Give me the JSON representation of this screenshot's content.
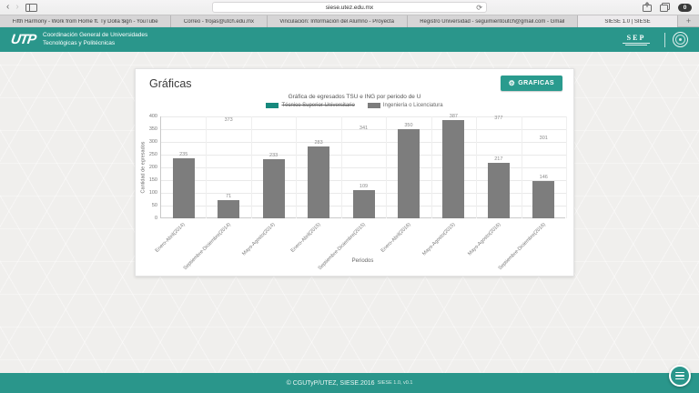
{
  "browser": {
    "url": "siese.utez.edu.mx",
    "tabs": [
      "Fifth Harmony - Work from Home ft. Ty Dolla $ign - YouTube",
      "Correo - frojas@utch.edu.mx",
      "Vinculación: Información del Alumno - Proyecta",
      "Registro Universidad - seguimientoutch@gmail.com - Gmail",
      "SIESE 1.0 | SIESE"
    ],
    "active_tab_index": 4,
    "new_tab_label": "+",
    "extension_badge": "0"
  },
  "header": {
    "logo_text": "UTP",
    "org_name_line1": "Coordinación General de Universidades",
    "org_name_line2": "Tecnológicas y Politécnicas",
    "sep_label": "SEP"
  },
  "main": {
    "card_title": "Gráficas",
    "graficas_button_label": "GRAFICAS",
    "gear_glyph": "⚙"
  },
  "footer": {
    "copyright": "© CGUTyP/UTEZ, SIESE.2016",
    "version": "SIESE 1.0, v0.1"
  },
  "colors": {
    "teal": "#2a968b",
    "button_teal": "#2a9b8e",
    "legend_teal": "#17897d",
    "bar_gray": "#7d7d7d"
  },
  "chart_data": {
    "type": "bar",
    "title": "Gráfica de egresados TSU e ING por periodo de U",
    "xlabel": "Periodos",
    "ylabel": "Cantidad de egresados",
    "ylim": [
      0,
      400
    ],
    "yticks": [
      0,
      50,
      100,
      150,
      200,
      250,
      300,
      350,
      400
    ],
    "grid": true,
    "legend_position": "top",
    "categories": [
      "Enero-Abril(2014)",
      "Septiembre-Diciembre(2014)",
      "Mayo-Agosto(2014)",
      "Enero-Abril(2015)",
      "Septiembre-Diciembre(2015)",
      "Enero-Abril(2016)",
      "Mayo-Agosto(2015)",
      "Mayo-Agosto(2016)",
      "Septiembre-Diciembre(2016)"
    ],
    "series": [
      {
        "name": "Técnico Superior Universitario",
        "color": "#17897d",
        "hidden": true,
        "values": [
          null,
          373,
          null,
          null,
          341,
          null,
          null,
          377,
          301
        ]
      },
      {
        "name": "Ingeniería o Licenciatura",
        "color": "#7d7d7d",
        "hidden": false,
        "values": [
          235,
          71,
          233,
          283,
          109,
          350,
          387,
          217,
          146
        ]
      }
    ]
  }
}
